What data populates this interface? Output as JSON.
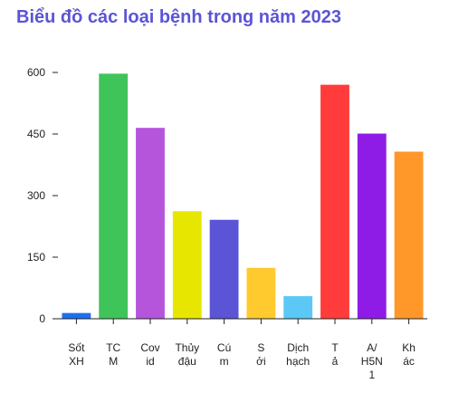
{
  "chart_data": {
    "type": "bar",
    "title": "Biểu đồ các loại bệnh trong năm 2023",
    "categories": [
      [
        "Sốt",
        "XH"
      ],
      [
        "TC",
        "M"
      ],
      [
        "Cov",
        "id"
      ],
      [
        "Thủy",
        "đậu"
      ],
      [
        "Cú",
        "m"
      ],
      [
        "S",
        "ởi"
      ],
      [
        "Dịch",
        "hạch"
      ],
      [
        "T",
        "ả"
      ],
      [
        "A/",
        "H5N",
        "1"
      ],
      [
        "Kh",
        "ác"
      ]
    ],
    "values": [
      14,
      597,
      465,
      262,
      241,
      124,
      55,
      570,
      451,
      407
    ],
    "colors": [
      "#1e6ff0",
      "#3fc45a",
      "#b455dc",
      "#e6e600",
      "#5b54d6",
      "#ffca2e",
      "#5bc8f5",
      "#ff3b3b",
      "#8f1ce6",
      "#ff9729"
    ],
    "yticks": [
      0,
      150,
      300,
      450,
      600
    ],
    "ylim": [
      0,
      600
    ],
    "xlabel": "",
    "ylabel": "",
    "grid": false
  }
}
